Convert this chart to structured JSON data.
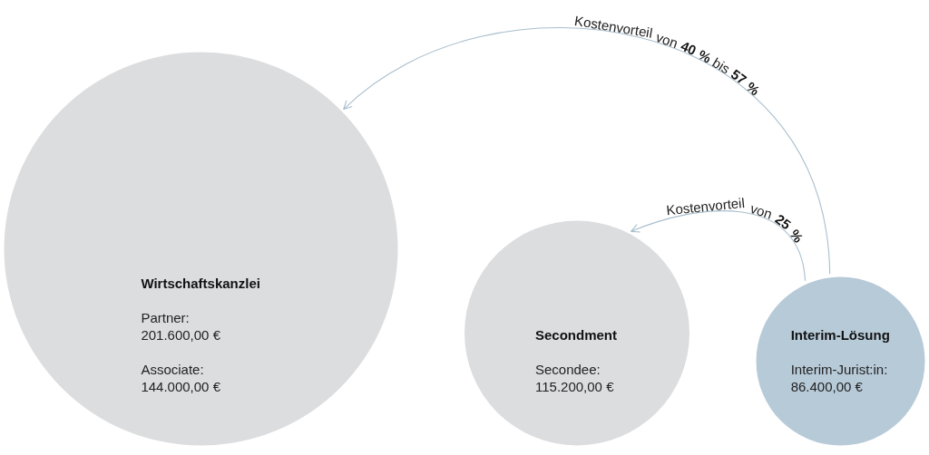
{
  "chart_data": {
    "type": "other",
    "categories": [
      "Wirtschaftskanzlei",
      "Secondment",
      "Interim-Lösung"
    ],
    "colors": [
      "#dcdddf",
      "#dcdddf",
      "#b7cad8"
    ],
    "series": [
      {
        "name": "Partner:",
        "values": [
          201600,
          null,
          null
        ],
        "value_labels": [
          "201.600,00 €",
          null,
          null
        ]
      },
      {
        "name": "Associate:",
        "values": [
          144000,
          null,
          null
        ],
        "value_labels": [
          "144.000,00 €",
          null,
          null
        ]
      },
      {
        "name": "Secondee:",
        "values": [
          null,
          115200,
          null
        ],
        "value_labels": [
          null,
          "115.200,00 €",
          null
        ]
      },
      {
        "name": "Interim-Jurist:in:",
        "values": [
          null,
          null,
          86400
        ],
        "value_labels": [
          null,
          null,
          "86.400,00 €"
        ]
      }
    ],
    "annotations": [
      "Kostenvorteil von 40 % bis 57 %",
      "Kostenvorteil von 25 %"
    ]
  }
}
